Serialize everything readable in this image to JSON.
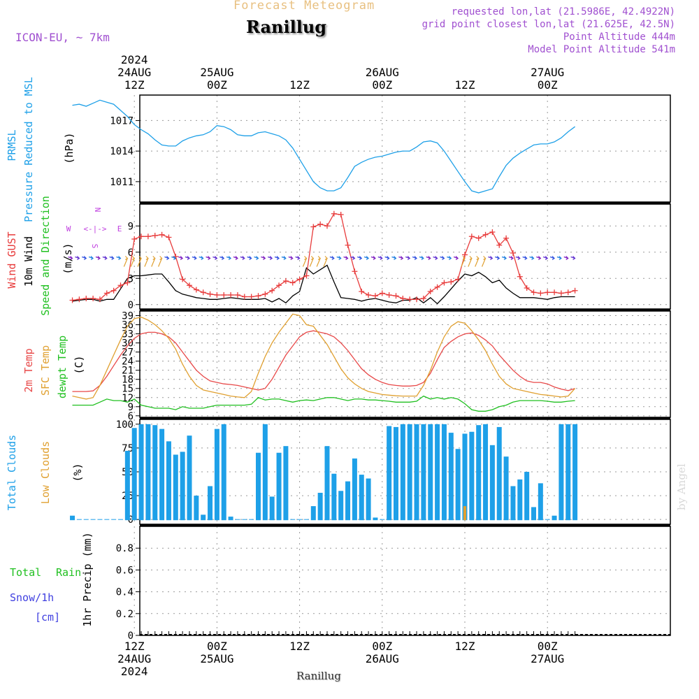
{
  "header": {
    "forecast_label": "Forecast Meteogram",
    "location": "Ranillug",
    "model": "ICON-EU, ~ 7km",
    "requested": "requested lon,lat (21.5986E, 42.4922N)",
    "grid_point": "grid point closest lon,lat (21.625E, 42.5N)",
    "point_altitude": "Point Altitude 444m",
    "model_altitude": "Model Point Altitude 541m",
    "footer_location": "Ranillug",
    "watermark": "by Angel"
  },
  "time_axis": {
    "top_labels": [
      {
        "t": 12,
        "lines": [
          "2024",
          "24AUG",
          "12Z"
        ]
      },
      {
        "t": 24,
        "lines": [
          "25AUG",
          "00Z"
        ]
      },
      {
        "t": 36,
        "lines": [
          "12Z"
        ]
      },
      {
        "t": 48,
        "lines": [
          "26AUG",
          "00Z"
        ]
      },
      {
        "t": 60,
        "lines": [
          "12Z"
        ]
      },
      {
        "t": 72,
        "lines": [
          "27AUG",
          "00Z"
        ]
      }
    ],
    "bottom_labels": [
      {
        "t": 12,
        "lines": [
          "12Z",
          "24AUG",
          "2024"
        ]
      },
      {
        "t": 24,
        "lines": [
          "00Z",
          "25AUG"
        ]
      },
      {
        "t": 36,
        "lines": [
          "12Z"
        ]
      },
      {
        "t": 48,
        "lines": [
          "00Z",
          "26AUG"
        ]
      },
      {
        "t": 60,
        "lines": [
          "12Z"
        ]
      },
      {
        "t": 72,
        "lines": [
          "00Z",
          "27AUG"
        ]
      }
    ]
  },
  "colors": {
    "pressure": "#1ea0e8",
    "gust": "#e83c3c",
    "wind": "#000000",
    "direction": "#20c020",
    "temp2m": "#e84848",
    "sfc": "#e0a030",
    "dewpt": "#20c020",
    "total_clouds": "#1ea0e8",
    "low_clouds": "#e0a030",
    "rain": "#20c020",
    "snow": "#4040e0",
    "compass": "#c040e0"
  },
  "panels": {
    "pressure": {
      "labels": [
        [
          "PRMSL",
          "#1ea0e8"
        ],
        [
          "Pressure Reduced to MSL",
          "#1ea0e8"
        ],
        [
          "(hPa)",
          "#000000"
        ]
      ]
    },
    "wind": {
      "labels": [
        [
          "Wind GUST",
          "#e83c3c"
        ],
        [
          "10m Wind",
          "#000000"
        ],
        [
          "Speed and Direction",
          "#20c020"
        ],
        [
          "(m/s)",
          "#000000"
        ]
      ],
      "compass": {
        "n": "N",
        "s": "S",
        "w": "W",
        "e": "E",
        "arrow": "<-|->"
      }
    },
    "temp": {
      "labels": [
        [
          "2m Temp",
          "#e84848"
        ],
        [
          "SFC Temp",
          "#e0a030"
        ],
        [
          "dewpt Temp",
          "#20c020"
        ],
        [
          "(C)",
          "#000000"
        ]
      ]
    },
    "clouds": {
      "labels": [
        [
          "Total Clouds",
          "#1ea0e8"
        ],
        [
          "Low Clouds",
          "#e0a030"
        ],
        [
          "(%)",
          "#000000"
        ]
      ]
    },
    "precip": {
      "ylabel": "1hr Precip (mm)",
      "legend_total": "Total",
      "legend_rain": "Rain",
      "legend_snow": "Snow/1h",
      "legend_cm": "[cm]"
    }
  },
  "chart_data": [
    {
      "type": "line",
      "ylabel": "(hPa)",
      "ylim": [
        1009.0,
        1019.5
      ],
      "yticks": [
        1011,
        1014,
        1017
      ],
      "x": [
        3,
        4,
        5,
        6,
        7,
        8,
        9,
        10,
        11,
        12,
        13,
        14,
        15,
        16,
        17,
        18,
        19,
        20,
        21,
        22,
        23,
        24,
        25,
        26,
        27,
        28,
        29,
        30,
        31,
        32,
        33,
        34,
        35,
        36,
        37,
        38,
        39,
        40,
        41,
        42,
        43,
        44,
        45,
        46,
        47,
        48,
        49,
        50,
        51,
        52,
        53,
        54,
        55,
        56,
        57,
        58,
        59,
        60,
        61,
        62,
        63,
        64,
        65,
        66,
        67,
        68,
        69,
        70,
        71,
        72,
        73,
        74,
        75,
        76
      ],
      "series": [
        {
          "values": [
            1018.5,
            1018.6,
            1018.4,
            1018.7,
            1019.0,
            1018.8,
            1018.6,
            1018.0,
            1017.4,
            1016.6,
            1016.1,
            1015.7,
            1015.1,
            1014.6,
            1014.5,
            1014.5,
            1015.0,
            1015.3,
            1015.5,
            1015.6,
            1015.9,
            1016.5,
            1016.4,
            1016.1,
            1015.6,
            1015.5,
            1015.5,
            1015.8,
            1015.9,
            1015.7,
            1015.5,
            1015.1,
            1014.3,
            1013.2,
            1012.1,
            1011.0,
            1010.4,
            1010.1,
            1010.1,
            1010.4,
            1011.4,
            1012.5,
            1012.9,
            1013.2,
            1013.4,
            1013.5,
            1013.7,
            1013.9,
            1014.0,
            1014.0,
            1014.4,
            1014.9,
            1015.0,
            1014.8,
            1014.0,
            1013.0,
            1012.0,
            1011.0,
            1010.1,
            1009.9,
            1010.1,
            1010.3,
            1011.5,
            1012.6,
            1013.3,
            1013.8,
            1014.2,
            1014.6,
            1014.7,
            1014.7,
            1014.9,
            1015.3,
            1015.9,
            1016.4
          ]
        }
      ]
    },
    {
      "type": "line",
      "ylabel": "(m/s)",
      "ylim": [
        -0.5,
        11.5
      ],
      "yticks": [
        0,
        3,
        6,
        9
      ],
      "x": [
        3,
        4,
        5,
        6,
        7,
        8,
        9,
        10,
        11,
        12,
        13,
        14,
        15,
        16,
        17,
        18,
        19,
        20,
        21,
        22,
        23,
        24,
        25,
        26,
        27,
        28,
        29,
        30,
        31,
        32,
        33,
        34,
        35,
        36,
        37,
        38,
        39,
        40,
        41,
        42,
        43,
        44,
        45,
        46,
        47,
        48,
        49,
        50,
        51,
        52,
        53,
        54,
        55,
        56,
        57,
        58,
        59,
        60,
        61,
        62,
        63,
        64,
        65,
        66,
        67,
        68,
        69,
        70,
        71,
        72,
        73,
        74,
        75,
        76
      ],
      "series": [
        {
          "name": "Wind GUST",
          "values": [
            0.5,
            0.6,
            0.7,
            0.7,
            0.6,
            1.3,
            1.6,
            2.2,
            2.5,
            7.5,
            7.8,
            7.8,
            7.9,
            8.0,
            7.7,
            5.5,
            2.9,
            2.2,
            1.7,
            1.4,
            1.2,
            1.1,
            1.1,
            1.1,
            1.1,
            0.9,
            0.9,
            1.0,
            1.2,
            1.6,
            2.2,
            2.7,
            2.5,
            2.9,
            3.3,
            8.9,
            9.2,
            9.0,
            10.4,
            10.3,
            6.8,
            3.8,
            1.5,
            1.1,
            1.0,
            1.3,
            1.1,
            1.0,
            0.7,
            0.6,
            0.6,
            0.7,
            1.5,
            2.0,
            2.5,
            2.6,
            2.9,
            5.7,
            7.8,
            7.6,
            8.0,
            8.3,
            6.8,
            7.6,
            5.9,
            3.2,
            1.9,
            1.4,
            1.3,
            1.4,
            1.4,
            1.3,
            1.4,
            1.6
          ]
        },
        {
          "name": "10m Wind",
          "values": [
            0.4,
            0.5,
            0.6,
            0.6,
            0.4,
            0.6,
            0.6,
            1.8,
            3.0,
            3.3,
            3.3,
            3.4,
            3.5,
            3.5,
            2.6,
            1.6,
            1.2,
            1.0,
            0.8,
            0.7,
            0.6,
            0.6,
            0.7,
            0.8,
            0.7,
            0.6,
            0.6,
            0.6,
            0.7,
            0.3,
            0.7,
            0.2,
            1.0,
            1.5,
            4.2,
            3.5,
            4.0,
            4.5,
            2.6,
            0.8,
            0.7,
            0.6,
            0.4,
            0.6,
            0.7,
            0.5,
            0.3,
            0.2,
            0.5,
            0.5,
            0.8,
            0.2,
            0.8,
            0.1,
            0.9,
            1.8,
            2.7,
            3.5,
            3.3,
            3.7,
            3.2,
            2.5,
            2.8,
            1.9,
            1.3,
            0.8,
            0.8,
            0.8,
            0.7,
            0.6,
            0.8,
            0.9,
            0.9,
            0.9
          ]
        }
      ]
    },
    {
      "type": "line",
      "ylabel": "(C)",
      "ylim": [
        5.5,
        40.5
      ],
      "yticks": [
        6,
        9,
        12,
        15,
        18,
        21,
        24,
        27,
        30,
        33,
        36,
        39
      ],
      "x": [
        3,
        4,
        5,
        6,
        7,
        8,
        9,
        10,
        11,
        12,
        13,
        14,
        15,
        16,
        17,
        18,
        19,
        20,
        21,
        22,
        23,
        24,
        25,
        26,
        27,
        28,
        29,
        30,
        31,
        32,
        33,
        34,
        35,
        36,
        37,
        38,
        39,
        40,
        41,
        42,
        43,
        44,
        45,
        46,
        47,
        48,
        49,
        50,
        51,
        52,
        53,
        54,
        55,
        56,
        57,
        58,
        59,
        60,
        61,
        62,
        63,
        64,
        65,
        66,
        67,
        68,
        69,
        70,
        71,
        72,
        73,
        74,
        75,
        76
      ],
      "series": [
        {
          "name": "2m Temp",
          "values": [
            14.0,
            14.0,
            14.0,
            14.2,
            16.0,
            19.0,
            22.5,
            26.0,
            29.0,
            31.5,
            33.0,
            33.5,
            33.5,
            33.0,
            32.0,
            30.0,
            27.0,
            24.0,
            21.0,
            19.0,
            17.5,
            17.0,
            16.5,
            16.3,
            16.0,
            15.5,
            15.0,
            14.5,
            15.0,
            18.0,
            22.0,
            26.0,
            29.0,
            32.0,
            33.5,
            34.0,
            33.5,
            33.0,
            32.0,
            30.0,
            27.5,
            24.5,
            21.5,
            19.5,
            18.0,
            17.0,
            16.3,
            16.0,
            15.8,
            15.8,
            16.0,
            17.0,
            20.0,
            24.5,
            28.5,
            30.5,
            32.0,
            33.0,
            33.3,
            32.5,
            31.0,
            29.0,
            26.0,
            23.5,
            21.0,
            19.0,
            17.5,
            17.0,
            17.0,
            16.5,
            15.5,
            14.8,
            14.3,
            15.0
          ]
        },
        {
          "name": "SFC Temp",
          "values": [
            12.5,
            12.0,
            11.5,
            12.0,
            16.0,
            21.0,
            26.0,
            31.0,
            35.5,
            38.0,
            38.5,
            37.5,
            36.0,
            34.0,
            31.5,
            28.0,
            23.0,
            19.0,
            16.0,
            14.5,
            14.0,
            13.5,
            13.0,
            12.5,
            12.2,
            12.0,
            14.0,
            20.0,
            25.5,
            30.0,
            33.5,
            36.5,
            39.5,
            39.0,
            36.0,
            35.5,
            32.5,
            29.5,
            25.5,
            21.5,
            18.5,
            16.5,
            15.0,
            14.0,
            13.5,
            13.0,
            12.8,
            12.6,
            12.5,
            12.5,
            12.5,
            16.0,
            21.0,
            27.0,
            32.0,
            35.5,
            37.0,
            36.5,
            34.0,
            31.0,
            27.5,
            23.0,
            19.0,
            16.5,
            15.0,
            14.5,
            14.0,
            13.5,
            13.0,
            12.8,
            12.5,
            12.2,
            12.5,
            15.0
          ]
        },
        {
          "name": "dewpt Temp",
          "values": [
            9.5,
            9.5,
            9.5,
            9.5,
            10.5,
            11.5,
            11.0,
            11.0,
            10.5,
            11.5,
            9.5,
            9.0,
            8.5,
            8.5,
            8.5,
            8.0,
            9.0,
            8.5,
            8.5,
            8.5,
            9.0,
            9.5,
            9.5,
            9.5,
            9.5,
            9.5,
            9.8,
            12.0,
            11.2,
            11.5,
            11.5,
            11.0,
            10.5,
            11.0,
            11.2,
            11.0,
            11.5,
            12.0,
            12.0,
            11.5,
            11.0,
            11.5,
            11.5,
            11.2,
            11.2,
            11.0,
            10.8,
            10.5,
            10.5,
            10.5,
            10.8,
            12.5,
            11.5,
            12.0,
            11.5,
            12.0,
            11.5,
            10.0,
            8.0,
            7.5,
            7.5,
            8.0,
            9.0,
            9.5,
            10.5,
            11.0,
            11.0,
            11.0,
            11.0,
            10.8,
            10.5,
            10.5,
            10.8,
            11.0
          ]
        }
      ]
    },
    {
      "type": "bar",
      "ylabel": "(%)",
      "ylim": [
        -5,
        105
      ],
      "yticks": [
        0,
        25,
        50,
        75,
        100
      ],
      "x": [
        3,
        4,
        5,
        6,
        7,
        8,
        9,
        10,
        11,
        12,
        13,
        14,
        15,
        16,
        17,
        18,
        19,
        20,
        21,
        22,
        23,
        24,
        25,
        26,
        27,
        28,
        29,
        30,
        31,
        32,
        33,
        34,
        35,
        36,
        37,
        38,
        39,
        40,
        41,
        42,
        43,
        44,
        45,
        46,
        47,
        48,
        49,
        50,
        51,
        52,
        53,
        54,
        55,
        56,
        57,
        58,
        59,
        60,
        61,
        62,
        63,
        64,
        65,
        66,
        67,
        68,
        69,
        70,
        71,
        72,
        73,
        74,
        75,
        76
      ],
      "series": [
        {
          "name": "Total Clouds",
          "values": [
            4,
            0,
            0,
            0,
            0,
            0,
            0,
            0,
            72,
            96,
            100,
            100,
            99,
            95,
            82,
            68,
            71,
            88,
            25,
            5,
            35,
            95,
            100,
            3,
            0,
            0,
            0,
            70,
            100,
            24,
            70,
            77,
            0,
            0,
            0,
            14,
            28,
            77,
            48,
            30,
            40,
            64,
            47,
            43,
            2,
            0,
            98,
            97,
            100,
            100,
            100,
            100,
            100,
            100,
            100,
            91,
            74,
            90,
            92,
            99,
            100,
            78,
            97,
            66,
            35,
            42,
            50,
            13,
            38,
            0,
            4,
            100,
            100,
            100
          ]
        },
        {
          "name": "Low Clouds",
          "values": [
            0,
            0,
            0,
            0,
            0,
            0,
            0,
            0,
            0,
            0,
            0,
            0,
            0,
            0,
            0,
            0,
            0,
            0,
            0,
            0,
            0,
            0,
            0,
            0,
            0,
            0,
            0,
            0,
            0,
            0,
            0,
            0,
            0,
            0,
            0,
            0,
            0,
            0,
            0,
            0,
            0,
            0,
            0,
            0,
            0,
            0,
            0,
            0,
            0,
            0,
            0,
            0,
            0,
            0,
            0,
            0,
            0,
            14,
            0,
            0,
            0,
            0,
            0,
            0,
            0,
            0,
            0,
            0,
            0,
            0,
            0,
            0,
            0,
            0
          ]
        }
      ]
    },
    {
      "type": "bar",
      "ylabel": "1hr Precip (mm)",
      "ylim": [
        0,
        1.0
      ],
      "yticks": [
        0,
        0.2,
        0.4,
        0.6,
        0.8
      ],
      "x": [
        3,
        76
      ],
      "series": [
        {
          "name": "Total Rain",
          "values": [
            0,
            0
          ]
        }
      ]
    }
  ]
}
